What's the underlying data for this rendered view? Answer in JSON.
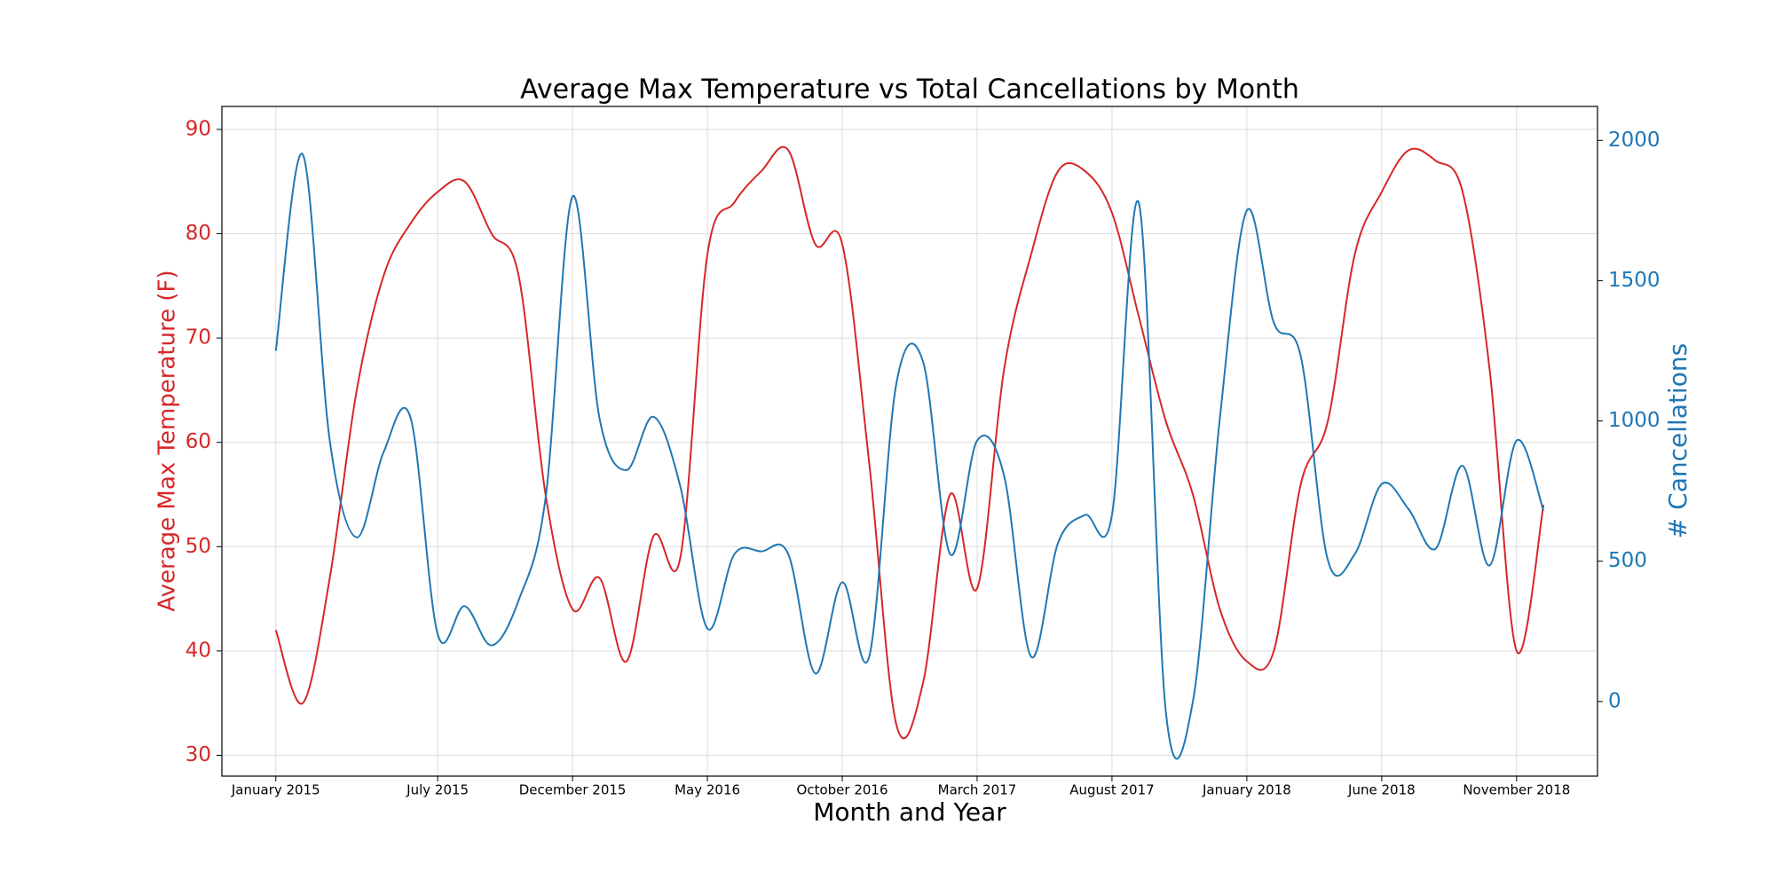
{
  "chart_data": {
    "type": "line",
    "title": "Average Max Temperature vs Total Cancellations by Month",
    "xlabel": "Month and Year",
    "ylabel": "Average Max Temperature (F)",
    "y2label": "# Cancellations",
    "x": [
      "2015-01",
      "2015-02",
      "2015-03",
      "2015-04",
      "2015-05",
      "2015-06",
      "2015-07",
      "2015-08",
      "2015-09",
      "2015-10",
      "2015-11",
      "2015-12",
      "2016-01",
      "2016-02",
      "2016-03",
      "2016-04",
      "2016-05",
      "2016-06",
      "2016-07",
      "2016-08",
      "2016-09",
      "2016-10",
      "2016-11",
      "2016-12",
      "2017-01",
      "2017-02",
      "2017-03",
      "2017-04",
      "2017-05",
      "2017-06",
      "2017-07",
      "2017-08",
      "2017-09",
      "2017-10",
      "2017-11",
      "2017-12",
      "2018-01",
      "2018-02",
      "2018-03",
      "2018-04",
      "2018-05",
      "2018-06",
      "2018-07",
      "2018-08",
      "2018-09",
      "2018-10",
      "2018-11",
      "2018-12"
    ],
    "xlim": [
      "2014-11",
      "2019-02"
    ],
    "xticks": [
      {
        "value": "2015-01",
        "label": "January 2015"
      },
      {
        "value": "2015-07",
        "label": "July 2015"
      },
      {
        "value": "2015-12",
        "label": "December 2015"
      },
      {
        "value": "2016-05",
        "label": "May 2016"
      },
      {
        "value": "2016-10",
        "label": "October 2016"
      },
      {
        "value": "2017-03",
        "label": "March 2017"
      },
      {
        "value": "2017-08",
        "label": "August 2017"
      },
      {
        "value": "2018-01",
        "label": "January 2018"
      },
      {
        "value": "2018-06",
        "label": "June 2018"
      },
      {
        "value": "2018-11",
        "label": "November 2018"
      }
    ],
    "ylim": [
      28,
      92.2
    ],
    "yticks": [
      30,
      40,
      50,
      60,
      70,
      80,
      90
    ],
    "y2lim": [
      -266,
      2121
    ],
    "y2ticks": [
      0,
      500,
      1000,
      1500,
      2000
    ],
    "grid": true,
    "series": [
      {
        "name": "Average Max Temperature (F)",
        "color": "#d62728",
        "axis": "y",
        "values": [
          42,
          35,
          47,
          65,
          76,
          81,
          84,
          85,
          80,
          76,
          55,
          44,
          47,
          39,
          51,
          49,
          78,
          83,
          86,
          88,
          79,
          79,
          58,
          33,
          37,
          55,
          46,
          67,
          78,
          86,
          86,
          82,
          72,
          62,
          55,
          44,
          39,
          40,
          56,
          62,
          78,
          84,
          88,
          87,
          84,
          67,
          40,
          54
        ]
      },
      {
        "name": "# Cancellations",
        "color": "#1f77b4",
        "axis": "y2",
        "values": [
          1250,
          1950,
          930,
          585,
          890,
          1010,
          240,
          340,
          200,
          360,
          725,
          1800,
          1010,
          825,
          1015,
          765,
          260,
          525,
          535,
          525,
          100,
          425,
          160,
          1130,
          1210,
          525,
          930,
          805,
          160,
          565,
          665,
          665,
          1775,
          -40,
          0,
          1010,
          1750,
          1350,
          1230,
          505,
          525,
          775,
          685,
          545,
          840,
          485,
          930,
          680
        ]
      }
    ]
  }
}
